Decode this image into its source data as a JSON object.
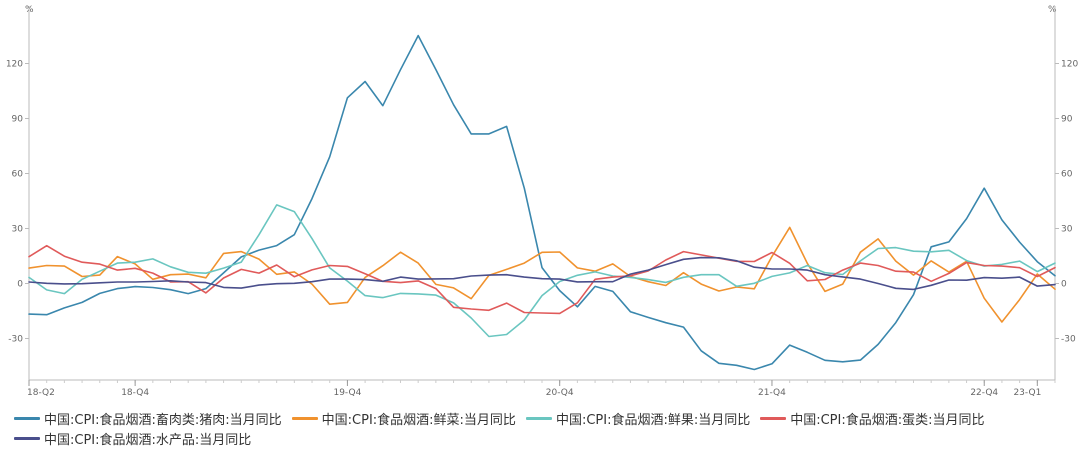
{
  "chart_data": {
    "type": "line",
    "left_unit": "%",
    "right_unit": "%",
    "y_ticks": [
      120,
      90,
      60,
      30,
      0,
      -30
    ],
    "y_tick_labels": [
      "120",
      "90",
      "60",
      "30",
      "0",
      "-30"
    ],
    "ylim": [
      -50,
      140
    ],
    "x_labels": [
      "18-Q2",
      "18-Q4",
      "19-Q4",
      "20-Q4",
      "21-Q4",
      "22-Q4",
      "23-Q1"
    ],
    "x_label_index": [
      0,
      6,
      18,
      30,
      42,
      54,
      57
    ],
    "grid": false,
    "legend_position": "bottom",
    "n_points": 59,
    "series": [
      {
        "name": "中国:CPI:食品烟酒:畜肉类:猪肉:当月同比",
        "color": "#3a87ad",
        "values": [
          -16.7,
          -17,
          -13.3,
          -10.3,
          -5.4,
          -2.8,
          -1.7,
          -2.2,
          -3.4,
          -5.5,
          -2.8,
          5.8,
          14.5,
          18.2,
          20.7,
          26.6,
          46.3,
          69.1,
          101.3,
          110.2,
          97,
          116.6,
          135.2,
          116.7,
          97.5,
          81.6,
          81.6,
          85.7,
          52,
          8.7,
          -3.9,
          -12.7,
          -1.6,
          -4.3,
          -15.4,
          -18.5,
          -21.4,
          -23.8,
          -36.7,
          -43.5,
          -44.6,
          -46.9,
          -43.8,
          -33.6,
          -37.5,
          -41.9,
          -42.7,
          -41.8,
          -33.2,
          -21.3,
          -6.1,
          20,
          22.7,
          35.4,
          52,
          34.7,
          22.6,
          11.9,
          4.2
        ]
      },
      {
        "name": "中国:CPI:食品烟酒:鲜菜:当月同比",
        "color": "#f0922e",
        "values": [
          8.4,
          9.8,
          9.5,
          3.8,
          4.6,
          14.7,
          10.7,
          2.3,
          4.8,
          5.1,
          3.1,
          16.4,
          17.4,
          13.3,
          5,
          6.3,
          -0.3,
          -11.3,
          -10.3,
          3.3,
          9.7,
          17.1,
          11.1,
          -0.5,
          -2.4,
          -8.3,
          4.4,
          7.7,
          11.1,
          17,
          17.2,
          8.5,
          6.7,
          10.7,
          3.8,
          1,
          -1.1,
          5.9,
          -0.3,
          -4.1,
          -1.9,
          -2.9,
          14.8,
          30.6,
          11,
          -4.3,
          -0.3,
          17.1,
          24.3,
          12.2,
          4.6,
          12.3,
          6.2,
          12.1,
          -8,
          -21,
          -8.8,
          5.2,
          -3.1
        ]
      },
      {
        "name": "中国:CPI:食品烟酒:鲜果:当月同比",
        "color": "#6ac6c0",
        "values": [
          3.3,
          -3.5,
          -5.5,
          2.3,
          6.7,
          11.1,
          11.6,
          13.4,
          9.1,
          6.1,
          5.6,
          8.4,
          11.7,
          26.6,
          42.9,
          39.2,
          24.5,
          8.5,
          1.3,
          -6.6,
          -7.7,
          -5.4,
          -5.7,
          -6.3,
          -10.6,
          -18.8,
          -28.9,
          -27.8,
          -19.9,
          -6.6,
          1.1,
          4.5,
          6.3,
          4.1,
          3.3,
          2.1,
          0.6,
          3.4,
          4.8,
          4.8,
          -1.5,
          0.1,
          3.9,
          5.8,
          9.8,
          5.9,
          4.9,
          12.3,
          19.1,
          19.6,
          17.6,
          17.3,
          18.1,
          12.5,
          9.5,
          10.4,
          12.2,
          6.5,
          11.1
        ]
      },
      {
        "name": "中国:CPI:食品烟酒:蛋类:当月同比",
        "color": "#e05a5a",
        "values": [
          14.6,
          20.6,
          14.9,
          11.6,
          10.6,
          7.3,
          8.3,
          5.7,
          0.9,
          1,
          -5.1,
          3,
          7.7,
          5.7,
          10.1,
          3.7,
          7.4,
          9.8,
          9.3,
          5.3,
          1.2,
          0.5,
          1.4,
          -2.8,
          -13,
          -13.9,
          -14.6,
          -10.7,
          -15.8,
          -16.1,
          -16.3,
          -10.5,
          2.3,
          3.5,
          4.2,
          6.8,
          12.8,
          17.4,
          15.6,
          13.8,
          12.1,
          12,
          16.9,
          11,
          1.5,
          2.2,
          7.3,
          11.1,
          9.8,
          6.7,
          6.2,
          1.2,
          5.5,
          11.4,
          9.8,
          9.5,
          8.6,
          3.8,
          8.7
        ]
      },
      {
        "name": "中国:CPI:食品烟酒:水产品:当月同比",
        "color": "#4a4f8c",
        "values": [
          0.8,
          0.1,
          -0.2,
          -0.1,
          0.4,
          0.8,
          0.8,
          1.1,
          1.5,
          0.8,
          0.5,
          -2.1,
          -2.5,
          -0.9,
          -0.1,
          0.1,
          1,
          2.4,
          2.4,
          2.1,
          1.2,
          3.5,
          2.4,
          2.5,
          2.6,
          4.1,
          4.6,
          4.8,
          3.5,
          2.6,
          2.4,
          0.9,
          1,
          1,
          5.1,
          7.3,
          10.3,
          13.2,
          14.1,
          14,
          12.4,
          8.9,
          7.9,
          7.9,
          7.3,
          4.8,
          3.6,
          2.4,
          0,
          -2.6,
          -3.2,
          -1,
          1.9,
          1.8,
          3.2,
          2.9,
          3.5,
          -1.4,
          -0.6
        ]
      }
    ]
  }
}
